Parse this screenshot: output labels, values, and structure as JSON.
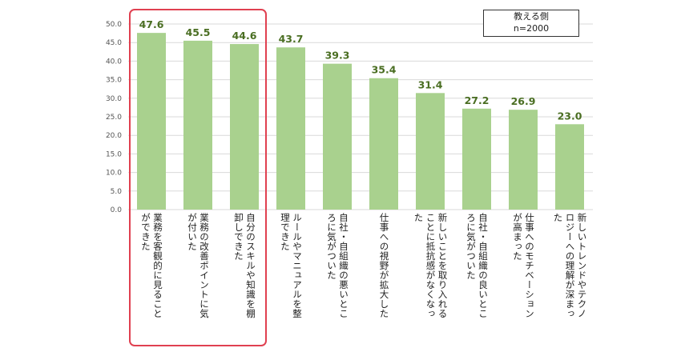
{
  "chart_data": {
    "type": "bar",
    "categories": [
      [
        "業務を客観的に見ること",
        "ができた"
      ],
      [
        "業務の改善ポイントに気",
        "が付いた"
      ],
      [
        "自分のスキルや知識を棚",
        "卸しできた"
      ],
      [
        "ルールやマニュアルを整",
        "理できた"
      ],
      [
        "自社・自組織の悪いとこ",
        "ろに気がついた"
      ],
      [
        "仕事への視野が拡大した"
      ],
      [
        "新しいことを取り入れる",
        "ことに抵抗感がなくなっ",
        "た"
      ],
      [
        "自社・自組織の良いとこ",
        "ろに気がついた"
      ],
      [
        "仕事へのモチベーション",
        "が高まった"
      ],
      [
        "新しいトレンドやテクノ",
        "ロジーへの理解が深まっ",
        "た"
      ]
    ],
    "values": [
      47.6,
      45.5,
      44.6,
      43.7,
      39.3,
      35.4,
      31.4,
      27.2,
      26.9,
      23.0
    ],
    "value_labels": [
      "47.6",
      "45.5",
      "44.6",
      "43.7",
      "39.3",
      "35.4",
      "31.4",
      "27.2",
      "26.9",
      "23.0"
    ],
    "yticks": [
      "0.0",
      "5.0",
      "10.0",
      "15.0",
      "20.0",
      "25.0",
      "30.0",
      "35.0",
      "40.0",
      "45.0",
      "50.0"
    ],
    "ylim": [
      0,
      50
    ],
    "title": "",
    "xlabel": "",
    "ylabel": "",
    "grid": true,
    "highlighted_categories": [
      0,
      1,
      2
    ],
    "legend": {
      "line1": "教える側",
      "line2": "n=2000",
      "position": "top-right"
    },
    "colors": {
      "bar": "#a9d18e",
      "value_label": "#4a6e22",
      "highlight_border": "#e04050",
      "grid": "#d9d9d9"
    }
  }
}
